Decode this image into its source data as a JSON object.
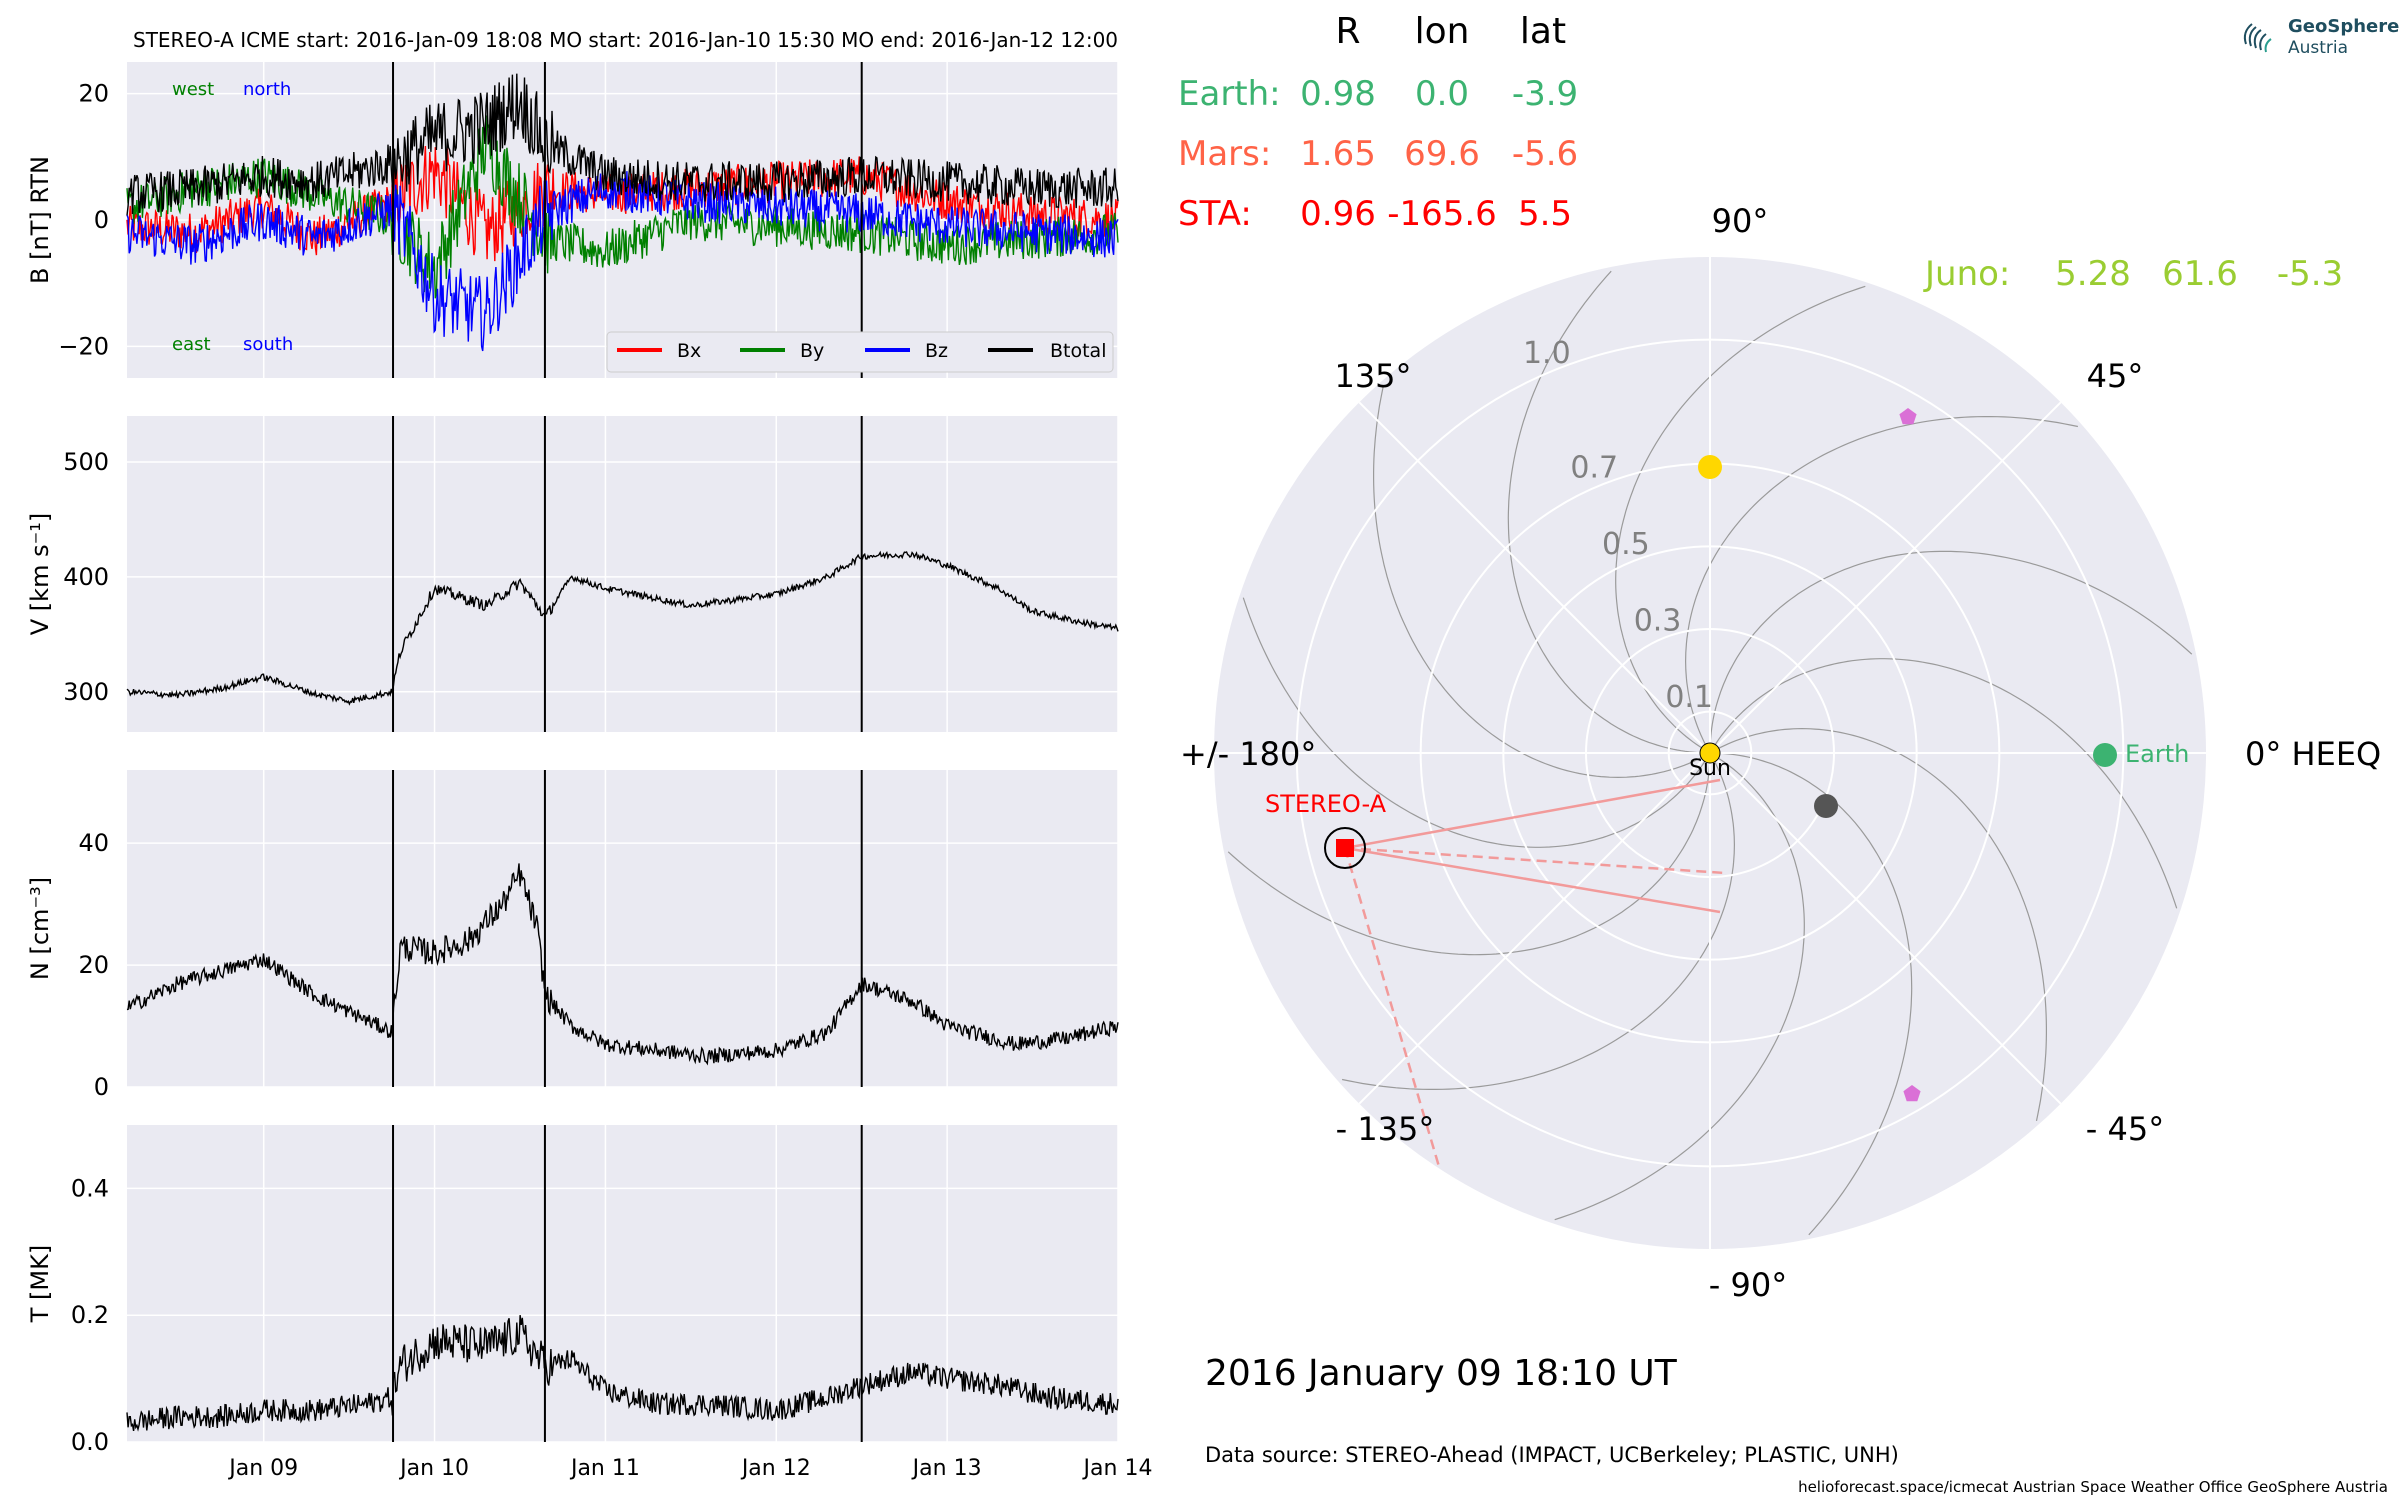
{
  "header": {
    "title": "STEREO-A    ICME start: 2016-Jan-09 18:08    MO start: 2016-Jan-10 15:30    MO end: 2016-Jan-12 12:00"
  },
  "logo": {
    "line1": "GeoSphere",
    "line2": "Austria"
  },
  "colors": {
    "panel_bg": "#eaeaf2",
    "bx": "#ff0000",
    "by": "#008000",
    "bz": "#0000ff",
    "btotal": "#000000",
    "earth": "#3cb371",
    "mars": "#ff6347",
    "sta": "#ff0000",
    "juno": "#9acd32",
    "sun": "#ffd700",
    "pentagon": "#da70d6",
    "gray_dot": "#555555"
  },
  "chart_data": [
    {
      "type": "line",
      "ylabel": "B [nT] RTN",
      "ylim": [
        -25,
        25
      ],
      "yticks": [
        "−20",
        "0",
        "20"
      ],
      "yticks_values": [
        -20,
        0,
        20
      ],
      "corner_labels": {
        "west": "west",
        "north": "north",
        "east": "east",
        "south": "south"
      },
      "legend_position": "lower-right",
      "series": [
        {
          "name": "Bx",
          "color": "#ff0000",
          "x": [
            8.2,
            8.6,
            9.0,
            9.3,
            9.76,
            10.0,
            10.3,
            10.65,
            11.0,
            11.5,
            12.0,
            12.5,
            13.0,
            13.5,
            14.0
          ],
          "values": [
            -1,
            -2,
            2,
            -3,
            3,
            8,
            -2,
            5,
            4,
            5,
            6,
            7,
            3,
            1,
            0
          ]
        },
        {
          "name": "By",
          "color": "#008000",
          "x": [
            8.2,
            8.6,
            9.0,
            9.3,
            9.76,
            10.0,
            10.3,
            10.65,
            11.0,
            11.5,
            12.0,
            12.5,
            13.0,
            13.5,
            14.0
          ],
          "values": [
            2,
            5,
            7,
            4,
            0,
            -8,
            12,
            -3,
            -5,
            0,
            -1,
            -2,
            -4,
            -3,
            -2
          ]
        },
        {
          "name": "Bz",
          "color": "#0000ff",
          "x": [
            8.2,
            8.6,
            9.0,
            9.3,
            9.76,
            10.0,
            10.3,
            10.65,
            11.0,
            11.5,
            12.0,
            12.5,
            13.0,
            13.5,
            14.0
          ],
          "values": [
            -2,
            -4,
            0,
            -3,
            2,
            -12,
            -15,
            1,
            5,
            3,
            2,
            1,
            -1,
            -2,
            -3
          ]
        },
        {
          "name": "Btotal",
          "color": "#000000",
          "x": [
            8.2,
            8.6,
            9.0,
            9.3,
            9.76,
            10.0,
            10.3,
            10.5,
            10.65,
            11.0,
            11.5,
            12.0,
            12.5,
            13.0,
            13.5,
            14.0
          ],
          "values": [
            4,
            5,
            7,
            6,
            9,
            13,
            15,
            19,
            12,
            7,
            6,
            6,
            7,
            6,
            5,
            5
          ]
        }
      ]
    },
    {
      "type": "line",
      "ylabel": "V [km s⁻¹]",
      "ylim": [
        265,
        540
      ],
      "yticks": [
        "300",
        "400",
        "500"
      ],
      "yticks_values": [
        300,
        400,
        500
      ],
      "series": [
        {
          "name": "",
          "color": "#000000",
          "x": [
            8.2,
            8.5,
            8.75,
            9.0,
            9.3,
            9.5,
            9.75,
            9.8,
            10.0,
            10.3,
            10.5,
            10.65,
            10.8,
            11.0,
            11.5,
            12.0,
            12.3,
            12.5,
            12.8,
            13.0,
            13.3,
            13.5,
            13.8,
            14.0
          ],
          "values": [
            300,
            297,
            303,
            313,
            298,
            292,
            300,
            335,
            390,
            375,
            395,
            365,
            400,
            390,
            375,
            385,
            400,
            418,
            420,
            410,
            390,
            370,
            360,
            355
          ]
        }
      ]
    },
    {
      "type": "line",
      "ylabel": "N [cm⁻³]",
      "ylim": [
        0,
        52
      ],
      "yticks": [
        "0",
        "20",
        "40"
      ],
      "yticks_values": [
        0,
        20,
        40
      ],
      "series": [
        {
          "name": "",
          "color": "#000000",
          "x": [
            8.2,
            8.5,
            8.75,
            9.0,
            9.3,
            9.6,
            9.75,
            9.8,
            10.0,
            10.2,
            10.4,
            10.5,
            10.6,
            10.65,
            10.8,
            11.0,
            11.3,
            11.6,
            12.0,
            12.3,
            12.5,
            12.8,
            13.0,
            13.4,
            13.7,
            14.0
          ],
          "values": [
            13,
            17,
            19,
            21,
            15,
            11,
            9,
            23,
            22,
            24,
            30,
            35,
            26,
            15,
            10,
            7,
            6,
            5,
            6,
            9,
            17,
            14,
            10,
            7,
            8,
            10
          ]
        }
      ]
    },
    {
      "type": "line",
      "ylabel": "T [MK]",
      "ylim": [
        0,
        0.5
      ],
      "yticks": [
        "0.0",
        "0.2",
        "0.4"
      ],
      "yticks_values": [
        0.0,
        0.2,
        0.4
      ],
      "xticks": [
        "Jan 09",
        "Jan 10",
        "Jan 11",
        "Jan 12",
        "Jan 13",
        "Jan 14"
      ],
      "xticks_values": [
        9,
        10,
        11,
        12,
        13,
        14
      ],
      "xlim": [
        8.2,
        14.0
      ],
      "event_lines": [
        9.757,
        10.646,
        12.5
      ],
      "series": [
        {
          "name": "",
          "color": "#000000",
          "x": [
            8.2,
            8.5,
            8.75,
            9.0,
            9.3,
            9.6,
            9.75,
            9.8,
            10.0,
            10.3,
            10.5,
            10.65,
            10.8,
            11.0,
            11.3,
            11.6,
            12.0,
            12.3,
            12.5,
            12.8,
            13.0,
            13.3,
            13.6,
            14.0
          ],
          "values": [
            0.03,
            0.04,
            0.04,
            0.05,
            0.05,
            0.06,
            0.07,
            0.12,
            0.16,
            0.15,
            0.17,
            0.12,
            0.13,
            0.08,
            0.06,
            0.06,
            0.05,
            0.07,
            0.09,
            0.11,
            0.1,
            0.09,
            0.07,
            0.06
          ]
        }
      ]
    }
  ],
  "table": {
    "headers": [
      "R",
      "lon",
      "lat"
    ],
    "rows": [
      {
        "name": "Earth:",
        "r": "0.98",
        "lon": "0.0",
        "lat": "-3.9",
        "color": "#3cb371"
      },
      {
        "name": "Mars:",
        "r": "1.65",
        "lon": "69.6",
        "lat": "-5.6",
        "color": "#ff6347"
      },
      {
        "name": "STA:",
        "r": "0.96",
        "lon": "-165.6",
        "lat": "5.5",
        "color": "#ff0000"
      }
    ],
    "juno": {
      "name": "Juno:",
      "r": "5.28",
      "lon": "61.6",
      "lat": "-5.3",
      "color": "#9acd32"
    }
  },
  "polar": {
    "angle_labels": {
      "a90": "90°",
      "a45": "45°",
      "a0": "0° HEEQ",
      "am45": "- 45°",
      "am90": "- 90°",
      "am135": "- 135°",
      "a180": "+/- 180°",
      "a135": "135°"
    },
    "radial_labels": [
      "0.1",
      "0.3",
      "0.5",
      "0.7",
      "1.0"
    ],
    "radial_values": [
      0.1,
      0.3,
      0.5,
      0.7,
      1.0
    ],
    "rmax": 1.2,
    "sun_label": "Sun",
    "earth_label": "Earth",
    "sta_label": "STEREO-A"
  },
  "footer": {
    "date": "2016 January 09  18:10 UT",
    "source": "Data source: STEREO-Ahead (IMPACT, UCBerkeley; PLASTIC, UNH)",
    "credits": "helioforecast.space/icmecat   Austrian Space Weather Office   GeoSphere Austria"
  }
}
